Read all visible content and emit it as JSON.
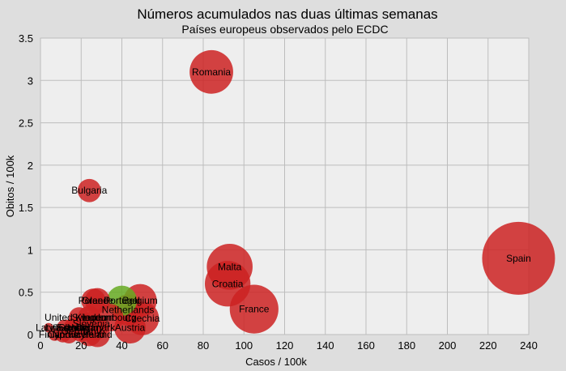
{
  "chart_data": {
    "type": "scatter",
    "subtype": "bubble",
    "title": "Números acumulados nas duas últimas semanas",
    "subtitle": "Países europeus observados pelo ECDC",
    "xlabel": "Casos / 100k",
    "ylabel": "Obitos / 100k",
    "xlim": [
      0,
      240
    ],
    "ylim": [
      0,
      3.5
    ],
    "xticks": [
      0,
      20,
      40,
      60,
      80,
      100,
      120,
      140,
      160,
      180,
      200,
      220,
      240
    ],
    "yticks": [
      0,
      0.5,
      1,
      1.5,
      2,
      2.5,
      3,
      3.5
    ],
    "grid": true,
    "colors": {
      "red": "#cc2222",
      "green": "#66aa22",
      "plot_bg": "#eeeeee",
      "page_bg": "#dedede",
      "grid": "#bdbdbd"
    },
    "points": [
      {
        "label": "Spain",
        "x": 235,
        "y": 0.9,
        "size": 235,
        "color": "red"
      },
      {
        "label": "Romania",
        "x": 84,
        "y": 3.1,
        "size": 84,
        "color": "red"
      },
      {
        "label": "Bulgaria",
        "x": 24,
        "y": 1.7,
        "size": 24,
        "color": "red"
      },
      {
        "label": "Malta",
        "x": 93,
        "y": 0.8,
        "size": 93,
        "color": "red"
      },
      {
        "label": "Croatia",
        "x": 92,
        "y": 0.6,
        "size": 92,
        "color": "red"
      },
      {
        "label": "France",
        "x": 105,
        "y": 0.3,
        "size": 105,
        "color": "red"
      },
      {
        "label": "Belgium",
        "x": 49,
        "y": 0.4,
        "size": 49,
        "color": "red"
      },
      {
        "label": "Portugal",
        "x": 40,
        "y": 0.4,
        "size": 40,
        "color": "green"
      },
      {
        "label": "Greece",
        "x": 28,
        "y": 0.4,
        "size": 28,
        "color": "red"
      },
      {
        "label": "Poland",
        "x": 26,
        "y": 0.4,
        "size": 26,
        "color": "red"
      },
      {
        "label": "Netherlands",
        "x": 43,
        "y": 0.29,
        "size": 43,
        "color": "red"
      },
      {
        "label": "Czechia",
        "x": 50,
        "y": 0.19,
        "size": 50,
        "color": "red"
      },
      {
        "label": "Luxembourg",
        "x": 34,
        "y": 0.2,
        "size": 34,
        "color": "red"
      },
      {
        "label": "Austria",
        "x": 44,
        "y": 0.08,
        "size": 44,
        "color": "red"
      },
      {
        "label": "United Kingdom",
        "x": 19,
        "y": 0.2,
        "size": 19,
        "color": "red"
      },
      {
        "label": "Sweden",
        "x": 24,
        "y": 0.2,
        "size": 24,
        "color": "red"
      },
      {
        "label": "Slovenia",
        "x": 25,
        "y": 0.13,
        "size": 25,
        "color": "red"
      },
      {
        "label": "Hungary",
        "x": 22,
        "y": 0.08,
        "size": 22,
        "color": "red"
      },
      {
        "label": "Denmark",
        "x": 27,
        "y": 0.08,
        "size": 27,
        "color": "red"
      },
      {
        "label": "Lithuania",
        "x": 12,
        "y": 0.08,
        "size": 12,
        "color": "red"
      },
      {
        "label": "Latvia",
        "x": 4,
        "y": 0.08,
        "size": 4,
        "color": "red"
      },
      {
        "label": "Estonia",
        "x": 16,
        "y": 0.08,
        "size": 16,
        "color": "red"
      },
      {
        "label": "Slovakia",
        "x": 18,
        "y": 0.08,
        "size": 18,
        "color": "red"
      },
      {
        "label": "Germany",
        "x": 20,
        "y": 0.04,
        "size": 20,
        "color": "red"
      },
      {
        "label": "Ireland",
        "x": 28,
        "y": 0,
        "size": 28,
        "color": "red"
      },
      {
        "label": "Finland",
        "x": 7,
        "y": 0,
        "size": 7,
        "color": "red"
      },
      {
        "label": "Cyprus",
        "x": 11,
        "y": 0,
        "size": 11,
        "color": "red"
      },
      {
        "label": "Norway",
        "x": 14,
        "y": 0,
        "size": 14,
        "color": "red"
      },
      {
        "label": "Iceland",
        "x": 24,
        "y": 0,
        "size": 24,
        "color": "red"
      }
    ]
  }
}
